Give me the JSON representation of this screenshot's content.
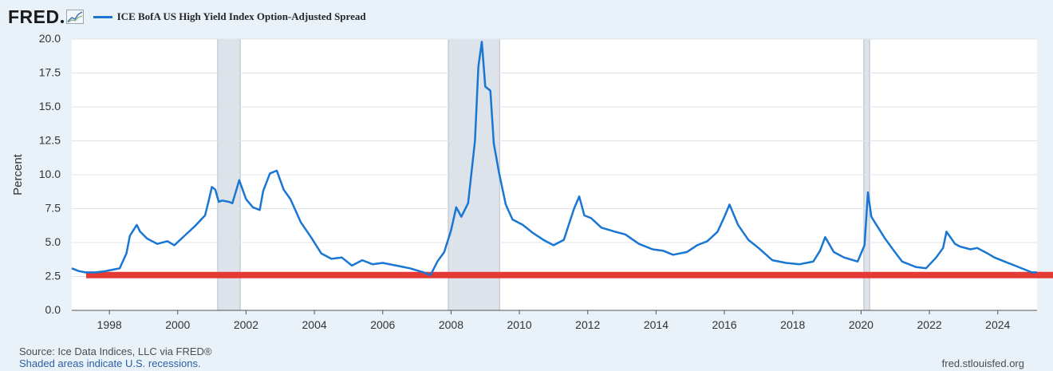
{
  "header": {
    "logo_text": "FRED",
    "legend_label": "ICE BofA US High Yield Index Option-Adjusted Spread"
  },
  "colors": {
    "series": "#1976d2",
    "highlight": "#e53935",
    "recession": "#dde3ea",
    "background": "#e9f1f9",
    "plot": "#ffffff"
  },
  "chart_data": {
    "type": "line",
    "ylabel": "Percent",
    "ylim": [
      0,
      20
    ],
    "yticks": [
      "0.0",
      "2.5",
      "5.0",
      "7.5",
      "10.0",
      "12.5",
      "15.0",
      "17.5",
      "20.0"
    ],
    "xlim": [
      1996.9,
      2025.15
    ],
    "xticks": [
      "1998",
      "2000",
      "2002",
      "2004",
      "2006",
      "2008",
      "2010",
      "2012",
      "2014",
      "2016",
      "2018",
      "2020",
      "2022",
      "2024"
    ],
    "grid": true,
    "recessions": [
      [
        2001.17,
        2001.83
      ],
      [
        2007.92,
        2009.42
      ],
      [
        2020.08,
        2020.25
      ]
    ],
    "reference_line": 2.6,
    "series": [
      {
        "name": "ICE BofA US High Yield Index Option-Adjusted Spread",
        "x": [
          1996.9,
          1997.1,
          1997.3,
          1997.6,
          1997.9,
          1998.1,
          1998.3,
          1998.5,
          1998.6,
          1998.8,
          1998.9,
          1999.1,
          1999.4,
          1999.7,
          1999.9,
          2000.2,
          2000.5,
          2000.8,
          2000.9,
          2001.0,
          2001.1,
          2001.2,
          2001.3,
          2001.5,
          2001.6,
          2001.8,
          2002.0,
          2002.2,
          2002.4,
          2002.5,
          2002.7,
          2002.9,
          2003.1,
          2003.3,
          2003.6,
          2003.9,
          2004.2,
          2004.5,
          2004.8,
          2005.1,
          2005.4,
          2005.7,
          2006.0,
          2006.4,
          2006.8,
          2007.2,
          2007.4,
          2007.6,
          2007.8,
          2008.0,
          2008.15,
          2008.3,
          2008.5,
          2008.7,
          2008.8,
          2008.9,
          2009.0,
          2009.15,
          2009.25,
          2009.4,
          2009.6,
          2009.8,
          2010.1,
          2010.4,
          2010.7,
          2011.0,
          2011.3,
          2011.6,
          2011.75,
          2011.9,
          2012.1,
          2012.4,
          2012.8,
          2013.1,
          2013.5,
          2013.9,
          2014.2,
          2014.5,
          2014.9,
          2015.2,
          2015.5,
          2015.8,
          2016.0,
          2016.15,
          2016.4,
          2016.7,
          2017.0,
          2017.4,
          2017.8,
          2018.2,
          2018.6,
          2018.8,
          2018.95,
          2019.2,
          2019.5,
          2019.9,
          2020.1,
          2020.2,
          2020.3,
          2020.45,
          2020.7,
          2020.9,
          2021.2,
          2021.6,
          2021.9,
          2022.2,
          2022.4,
          2022.5,
          2022.75,
          2022.9,
          2023.2,
          2023.4,
          2023.7,
          2023.9,
          2024.2,
          2024.5,
          2024.8,
          2025.0,
          2025.15
        ],
        "values": [
          3.1,
          2.9,
          2.8,
          2.8,
          2.9,
          3.0,
          3.1,
          4.2,
          5.5,
          6.3,
          5.8,
          5.3,
          4.9,
          5.1,
          4.8,
          5.5,
          6.2,
          7.0,
          8.0,
          9.1,
          8.9,
          8.0,
          8.1,
          8.0,
          7.9,
          9.6,
          8.2,
          7.6,
          7.4,
          8.8,
          10.1,
          10.3,
          8.9,
          8.2,
          6.5,
          5.4,
          4.2,
          3.8,
          3.9,
          3.3,
          3.7,
          3.4,
          3.5,
          3.3,
          3.1,
          2.8,
          2.6,
          3.6,
          4.3,
          5.9,
          7.6,
          6.9,
          7.9,
          12.5,
          18.0,
          19.8,
          16.5,
          16.2,
          12.3,
          10.2,
          7.8,
          6.7,
          6.3,
          5.7,
          5.2,
          4.8,
          5.2,
          7.5,
          8.4,
          7.0,
          6.8,
          6.1,
          5.8,
          5.6,
          4.9,
          4.5,
          4.4,
          4.1,
          4.3,
          4.8,
          5.1,
          5.8,
          6.9,
          7.8,
          6.3,
          5.2,
          4.6,
          3.7,
          3.5,
          3.4,
          3.6,
          4.4,
          5.4,
          4.3,
          3.9,
          3.6,
          4.8,
          8.7,
          6.9,
          6.3,
          5.3,
          4.6,
          3.6,
          3.2,
          3.1,
          3.9,
          4.6,
          5.8,
          4.9,
          4.7,
          4.5,
          4.6,
          4.2,
          3.9,
          3.6,
          3.3,
          3.0,
          2.8,
          2.8
        ]
      }
    ]
  },
  "footer": {
    "source": "Source: Ice Data Indices, LLC via FRED®",
    "recession_note": "Shaded areas indicate U.S. recessions.",
    "url": "fred.stlouisfed.org"
  }
}
